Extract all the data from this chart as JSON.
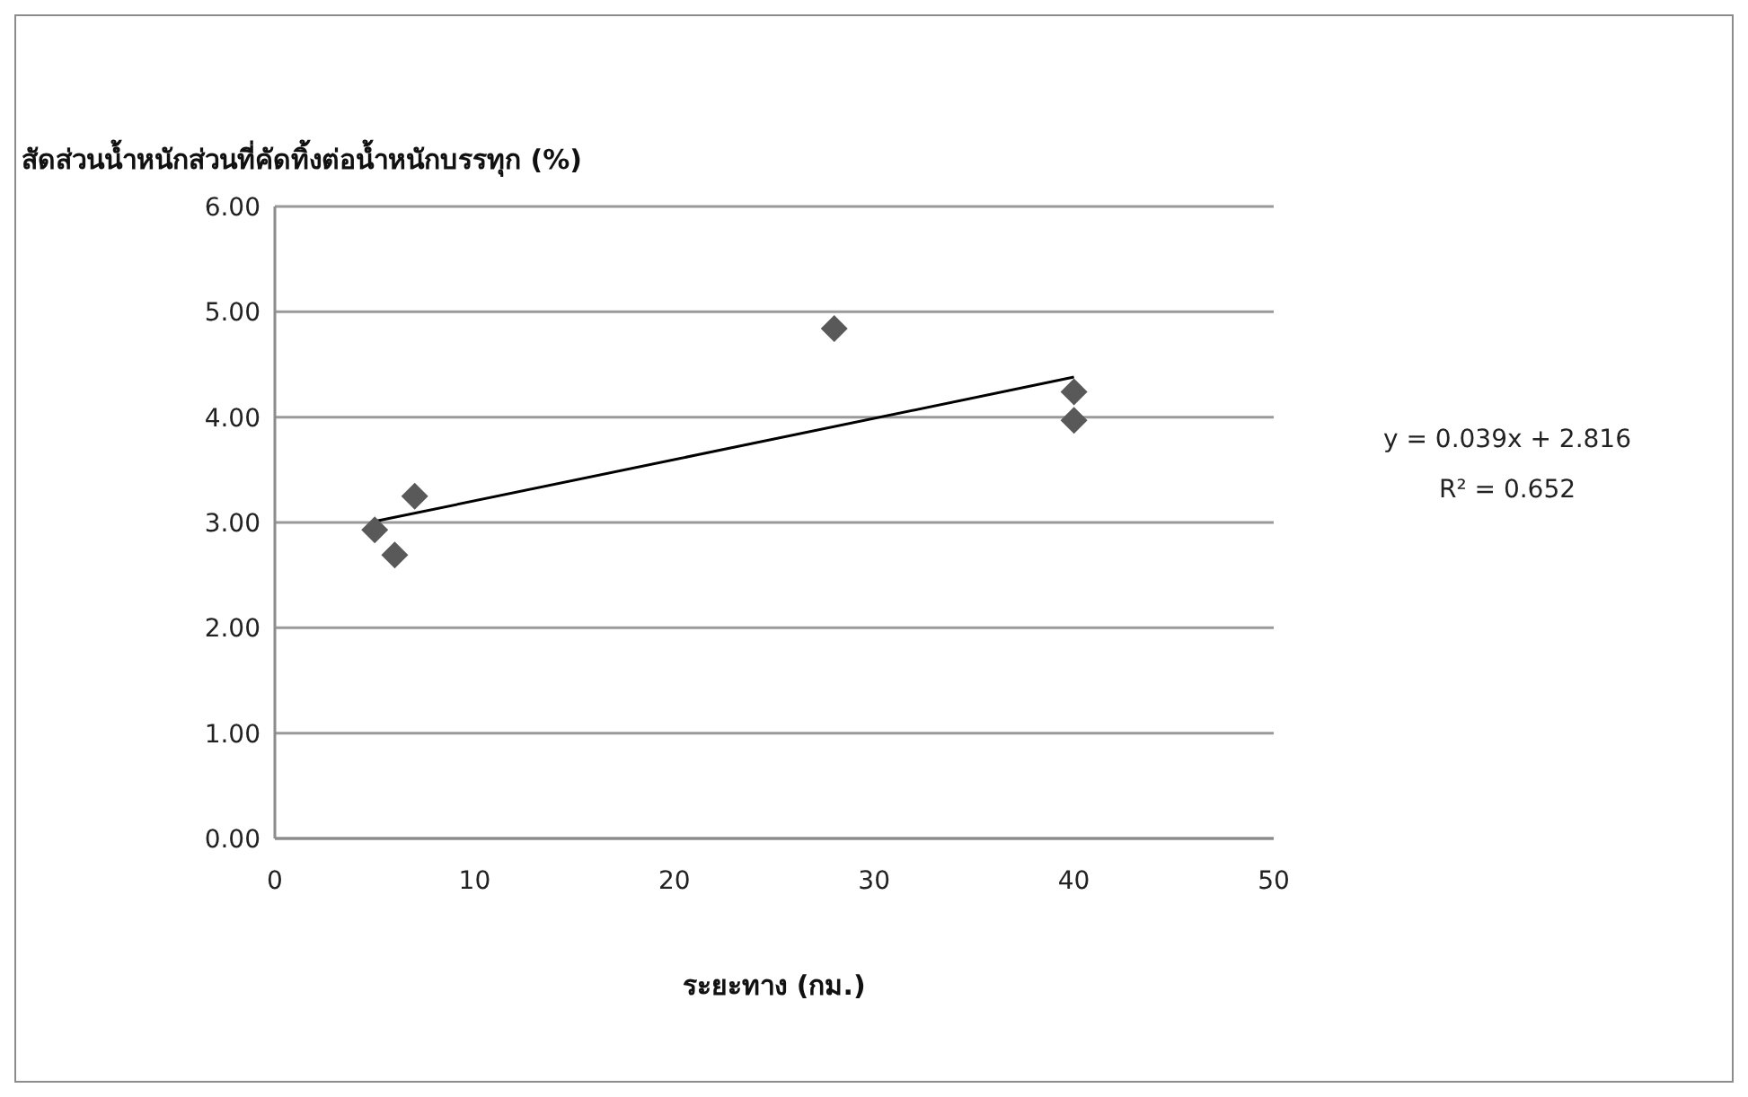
{
  "chart_data": {
    "type": "scatter",
    "ylabel": "สัดส่วนน้ำหนักส่วนที่คัดทิ้งต่อน้ำหนักบรรทุก (%)",
    "xlabel": "ระยะทาง (กม.)",
    "series": [
      {
        "color": "#595959",
        "marker": "diamond",
        "x": [
          5,
          6,
          7,
          28,
          40,
          40
        ],
        "values": [
          2.93,
          2.69,
          3.25,
          4.84,
          4.24,
          3.97
        ]
      },
      {
        "type": "line",
        "color": "#000000",
        "x": [
          5,
          40
        ],
        "values": [
          3.01,
          4.38
        ]
      }
    ],
    "xlim": [
      0,
      50
    ],
    "xticks": [
      0,
      10,
      20,
      30,
      40,
      50
    ],
    "ylim": [
      0,
      6
    ],
    "yticks": [
      {
        "value": 0,
        "label": "0.00"
      },
      {
        "value": 1,
        "label": "1.00"
      },
      {
        "value": 2,
        "label": "2.00"
      },
      {
        "value": 3,
        "label": "3.00"
      },
      {
        "value": 4,
        "label": "4.00"
      },
      {
        "value": 5,
        "label": "5.00"
      },
      {
        "value": 6,
        "label": "6.00"
      }
    ],
    "grid": "y",
    "legend": false,
    "annotations": [
      "y = 0.039x + 2.816",
      "R² = 0.652"
    ]
  }
}
